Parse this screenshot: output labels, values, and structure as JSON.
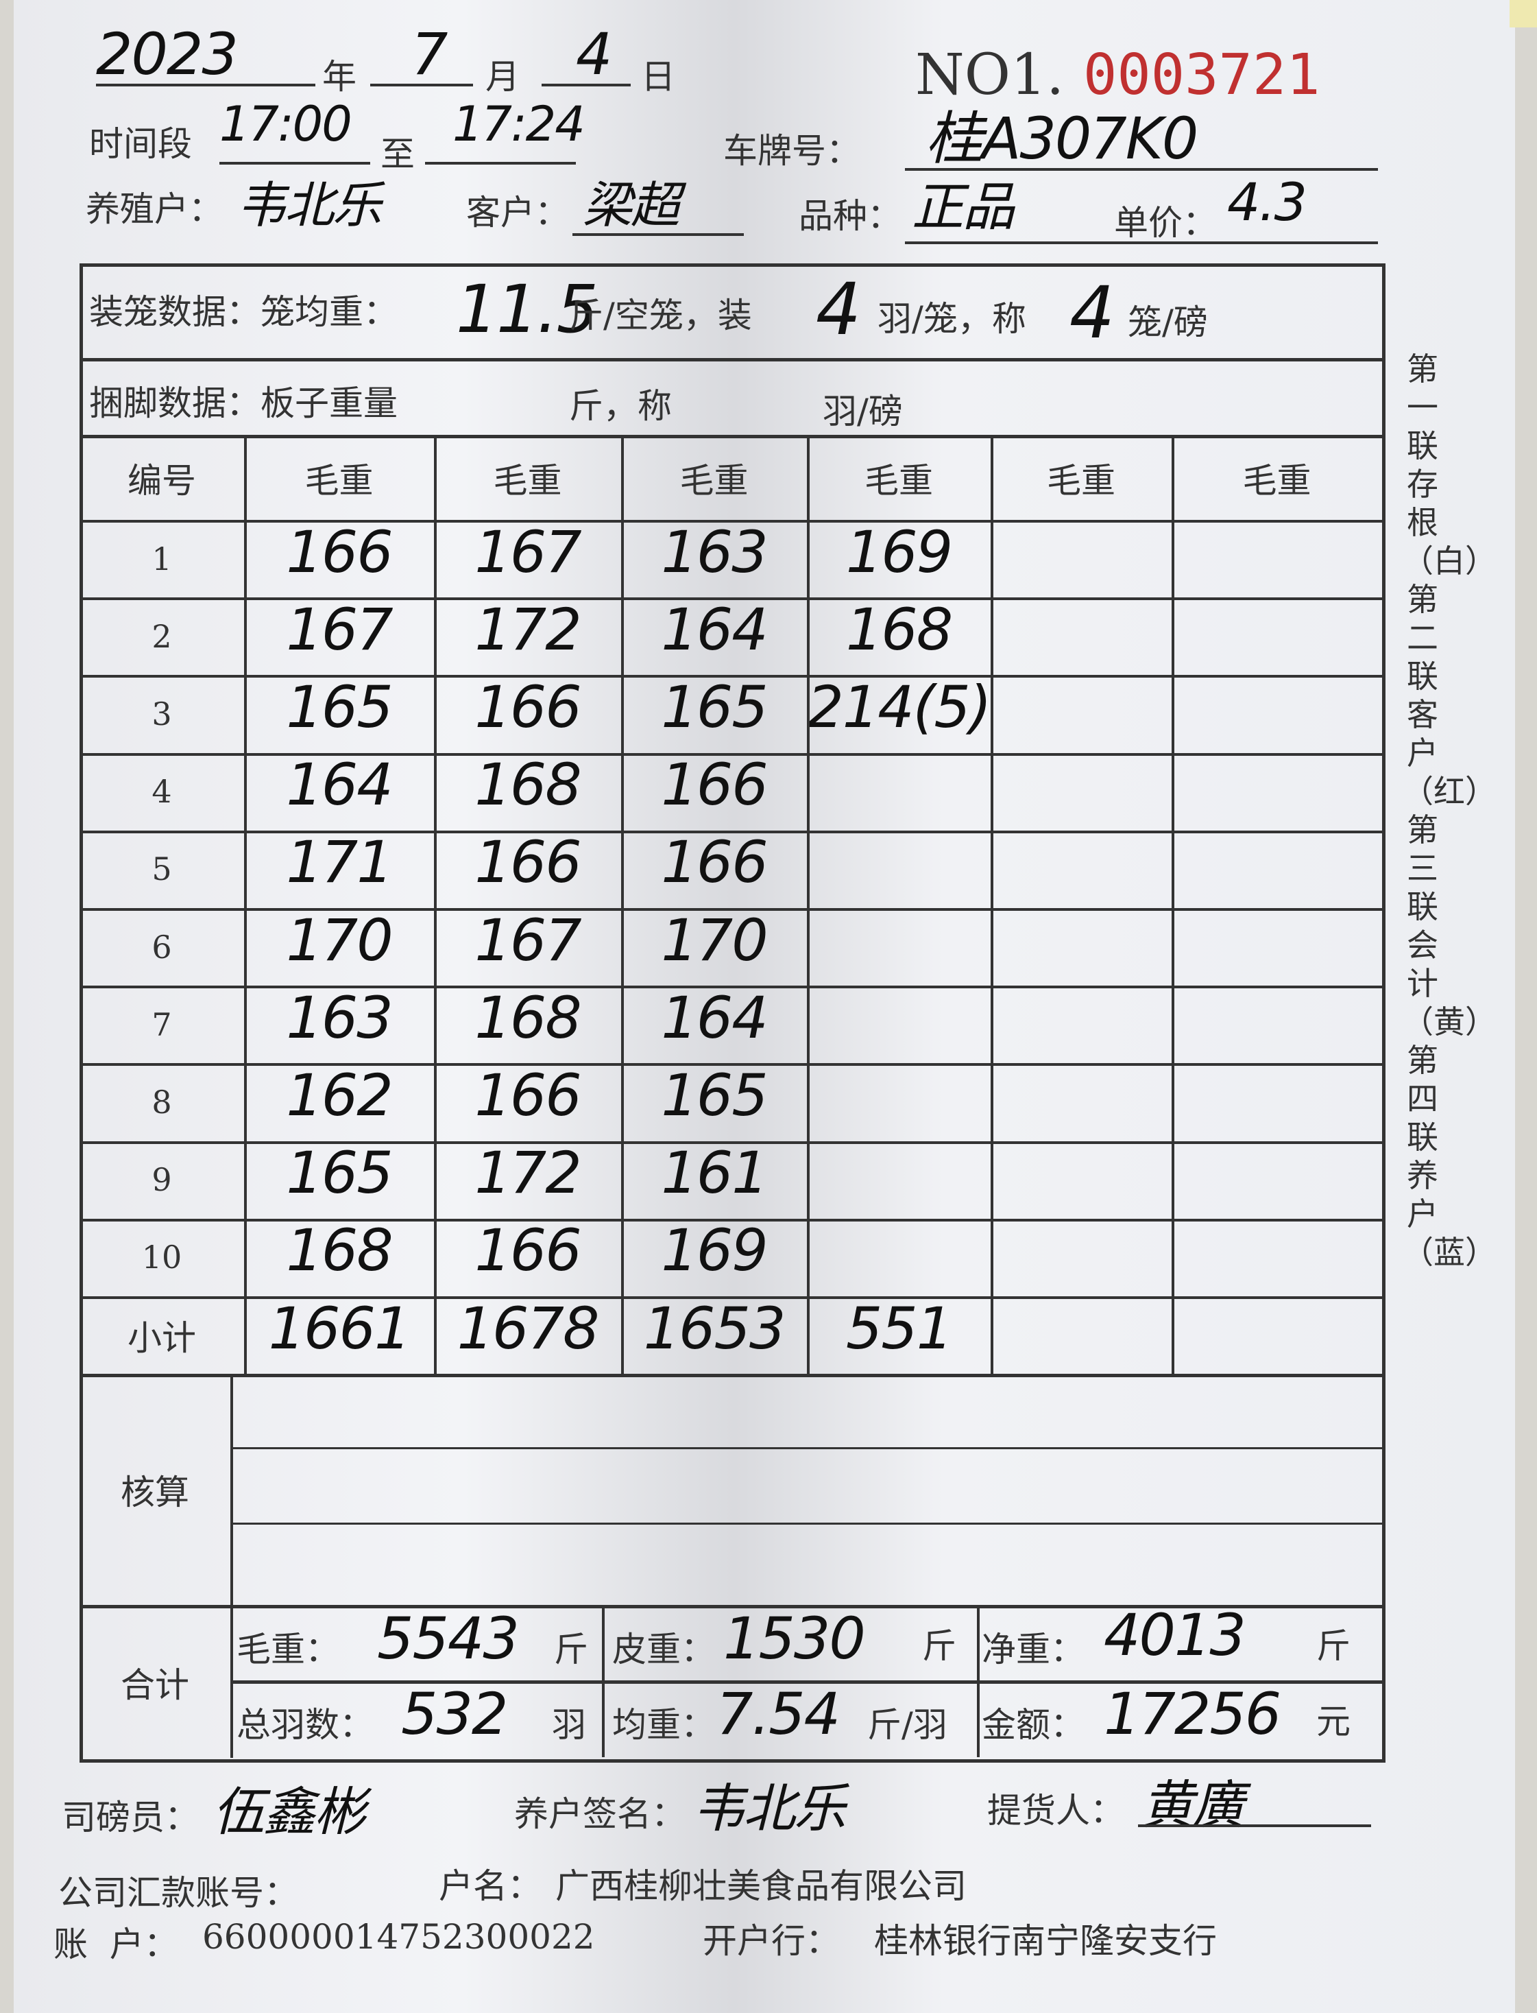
{
  "header": {
    "year": "2023",
    "year_label": "年",
    "month": "7",
    "month_label": "月",
    "day": "4",
    "day_label": "日",
    "serial_prefix": "NO1.",
    "serial_number": "0003721",
    "time_label": "时间段",
    "time_from": "17:00",
    "time_to_label": "至",
    "time_to": "17:24",
    "plate_label": "车牌号：",
    "plate": "桂A307K0",
    "farmer_label": "养殖户：",
    "farmer": "韦北乐",
    "customer_label": "客户：",
    "customer": "梁超",
    "variety_label": "品种：",
    "variety": "正品",
    "price_label": "单价：",
    "price": "4.3"
  },
  "cage": {
    "label": "装笼数据：笼均重：",
    "avg_weight": "11.5",
    "unit1": "斤/空笼，装",
    "per_cage": "4",
    "unit2": "羽/笼，称",
    "cages_per_weigh": "4",
    "unit3": "笼/磅"
  },
  "bundle": {
    "label": "捆脚数据：板子重量",
    "unit1": "斤，称",
    "unit2": "羽/磅"
  },
  "table": {
    "headers": [
      "编号",
      "毛重",
      "毛重",
      "毛重",
      "毛重",
      "毛重",
      "毛重"
    ],
    "rows": [
      {
        "no": "1",
        "values": [
          "166",
          "167",
          "163",
          "169",
          "",
          ""
        ]
      },
      {
        "no": "2",
        "values": [
          "167",
          "172",
          "164",
          "168",
          "",
          ""
        ]
      },
      {
        "no": "3",
        "values": [
          "165",
          "166",
          "165",
          "214(5)",
          "",
          ""
        ]
      },
      {
        "no": "4",
        "values": [
          "164",
          "168",
          "166",
          "",
          "",
          ""
        ]
      },
      {
        "no": "5",
        "values": [
          "171",
          "166",
          "166",
          "",
          "",
          ""
        ]
      },
      {
        "no": "6",
        "values": [
          "170",
          "167",
          "170",
          "",
          "",
          ""
        ]
      },
      {
        "no": "7",
        "values": [
          "163",
          "168",
          "164",
          "",
          "",
          ""
        ]
      },
      {
        "no": "8",
        "values": [
          "162",
          "166",
          "165",
          "",
          "",
          ""
        ]
      },
      {
        "no": "9",
        "values": [
          "165",
          "172",
          "161",
          "",
          "",
          ""
        ]
      },
      {
        "no": "10",
        "values": [
          "168",
          "166",
          "169",
          "",
          "",
          ""
        ]
      }
    ],
    "subtotal": {
      "label": "小计",
      "values": [
        "1661",
        "1678",
        "1653",
        "551",
        "",
        ""
      ]
    },
    "check_label": "核算"
  },
  "totals": {
    "label": "合计",
    "gross_label": "毛重：",
    "gross": "5543",
    "gross_unit": "斤",
    "tare_label": "皮重：",
    "tare": "1530",
    "tare_unit": "斤",
    "net_label": "净重：",
    "net": "4013",
    "net_unit": "斤",
    "count_label": "总羽数：",
    "count": "532",
    "count_unit": "羽",
    "avg_label": "均重：",
    "avg": "7.54",
    "avg_unit": "斤/羽",
    "amount_label": "金额：",
    "amount": "17256",
    "amount_unit": "元"
  },
  "side_text": "第一联存根（白）第二联客户（红）第三联会计（黄）第四联养户（蓝）",
  "signatures": {
    "weigher_label": "司磅员：",
    "weigher": "伍鑫彬",
    "farmer_sign_label": "养户签名：",
    "farmer_sign": "韦北乐",
    "pickup_label": "提货人：",
    "pickup": "黄廣"
  },
  "footer": {
    "remit_label": "公司汇款账号：",
    "account_name_label": "户名：",
    "account_name": "广西桂柳壮美食品有限公司",
    "account_label": "账  户：",
    "account": "660000014752300022",
    "bank_label": "开户行：",
    "bank": "桂林银行南宁隆安支行"
  },
  "colors": {
    "serial": "#c03030",
    "ink": "#111111"
  }
}
